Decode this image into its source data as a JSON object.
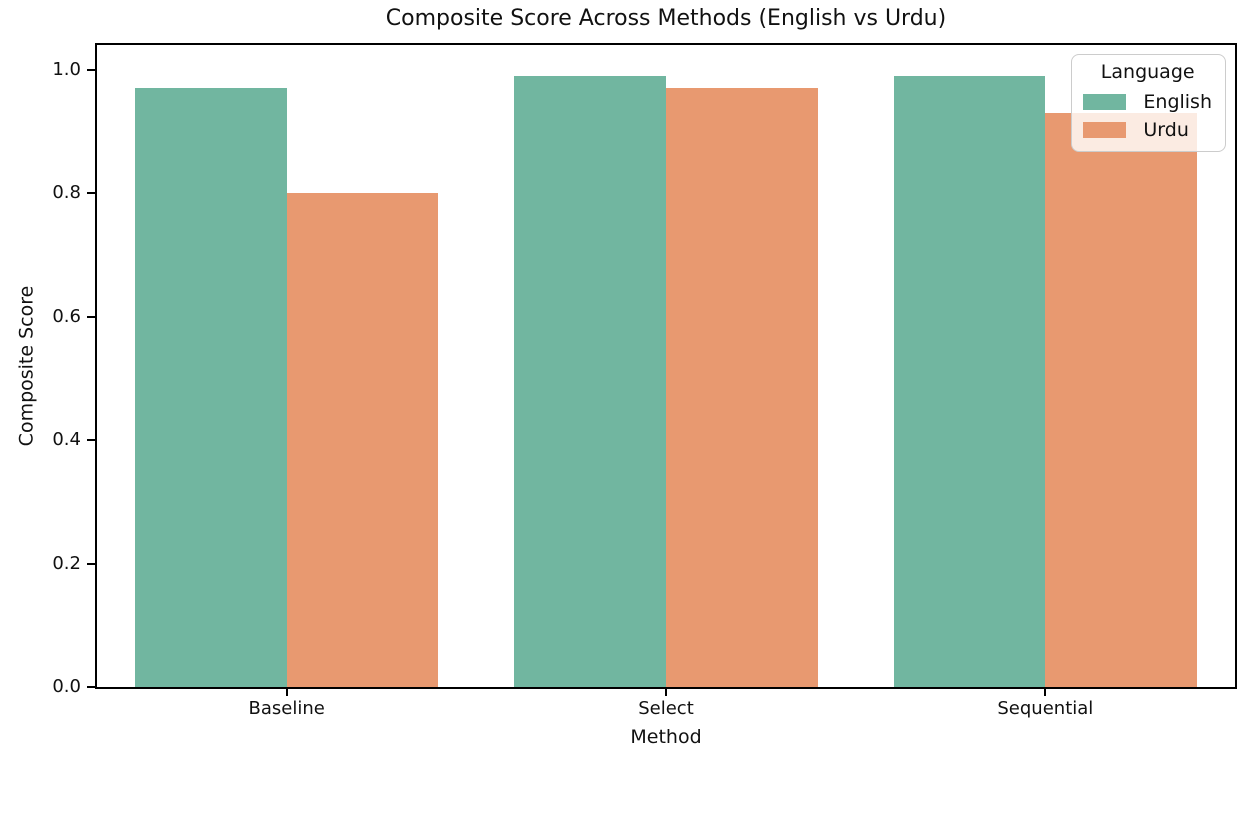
{
  "chart_data": {
    "type": "bar",
    "title": "Composite Score Across Methods (English vs Urdu)",
    "xlabel": "Method",
    "ylabel": "Composite Score",
    "categories": [
      "Baseline",
      "Select",
      "Sequential"
    ],
    "series": [
      {
        "name": "English",
        "color": "#71b6a0",
        "values": [
          0.97,
          0.99,
          0.99
        ]
      },
      {
        "name": "Urdu",
        "color": "#e89970",
        "values": [
          0.8,
          0.97,
          0.93
        ]
      }
    ],
    "legend": {
      "title": "Language",
      "position": "upper right"
    },
    "y_ticks": [
      "0.0",
      "0.2",
      "0.4",
      "0.6",
      "0.8",
      "1.0"
    ],
    "ylim": [
      0,
      1.04
    ],
    "bar_group_fraction": 0.8,
    "grid": false,
    "axis_color": "#000000",
    "background": "#ffffff"
  }
}
